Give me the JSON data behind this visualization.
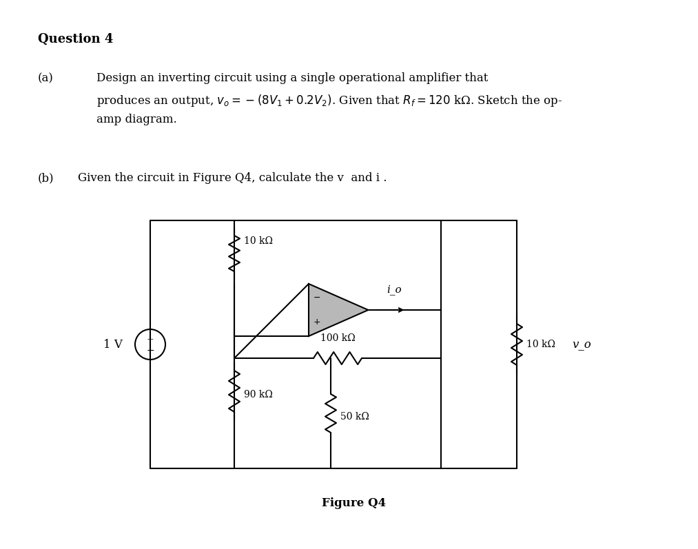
{
  "bg_color": "#ffffff",
  "title": "Question 4",
  "part_a_label": "(a)",
  "part_a_text_line1": "Design an inverting circuit using a single operational amplifier that",
  "part_a_text_line2": "produces an output, $v_o = -(8V_1 + 0.2V_2)$. Given that $R_f = 120$ kΩ. Sketch the op-",
  "part_a_text_line3": "amp diagram.",
  "part_b_label": "(b)",
  "part_b_text": "Given the circuit in Figure Q4, calculate the v  and i .",
  "figure_label": "Figure Q4",
  "resistor_10k_top": "10 kΩ",
  "resistor_90k": "90 kΩ",
  "resistor_100k": "100 kΩ",
  "resistor_50k": "50 kΩ",
  "resistor_10k_right": "10 kΩ",
  "voltage_source": "1 V",
  "io_label": "i_o",
  "vo_label": "v_o",
  "text_color": "#000000",
  "circuit_lw": 1.5,
  "opamp_facecolor": "#b8b8b8"
}
